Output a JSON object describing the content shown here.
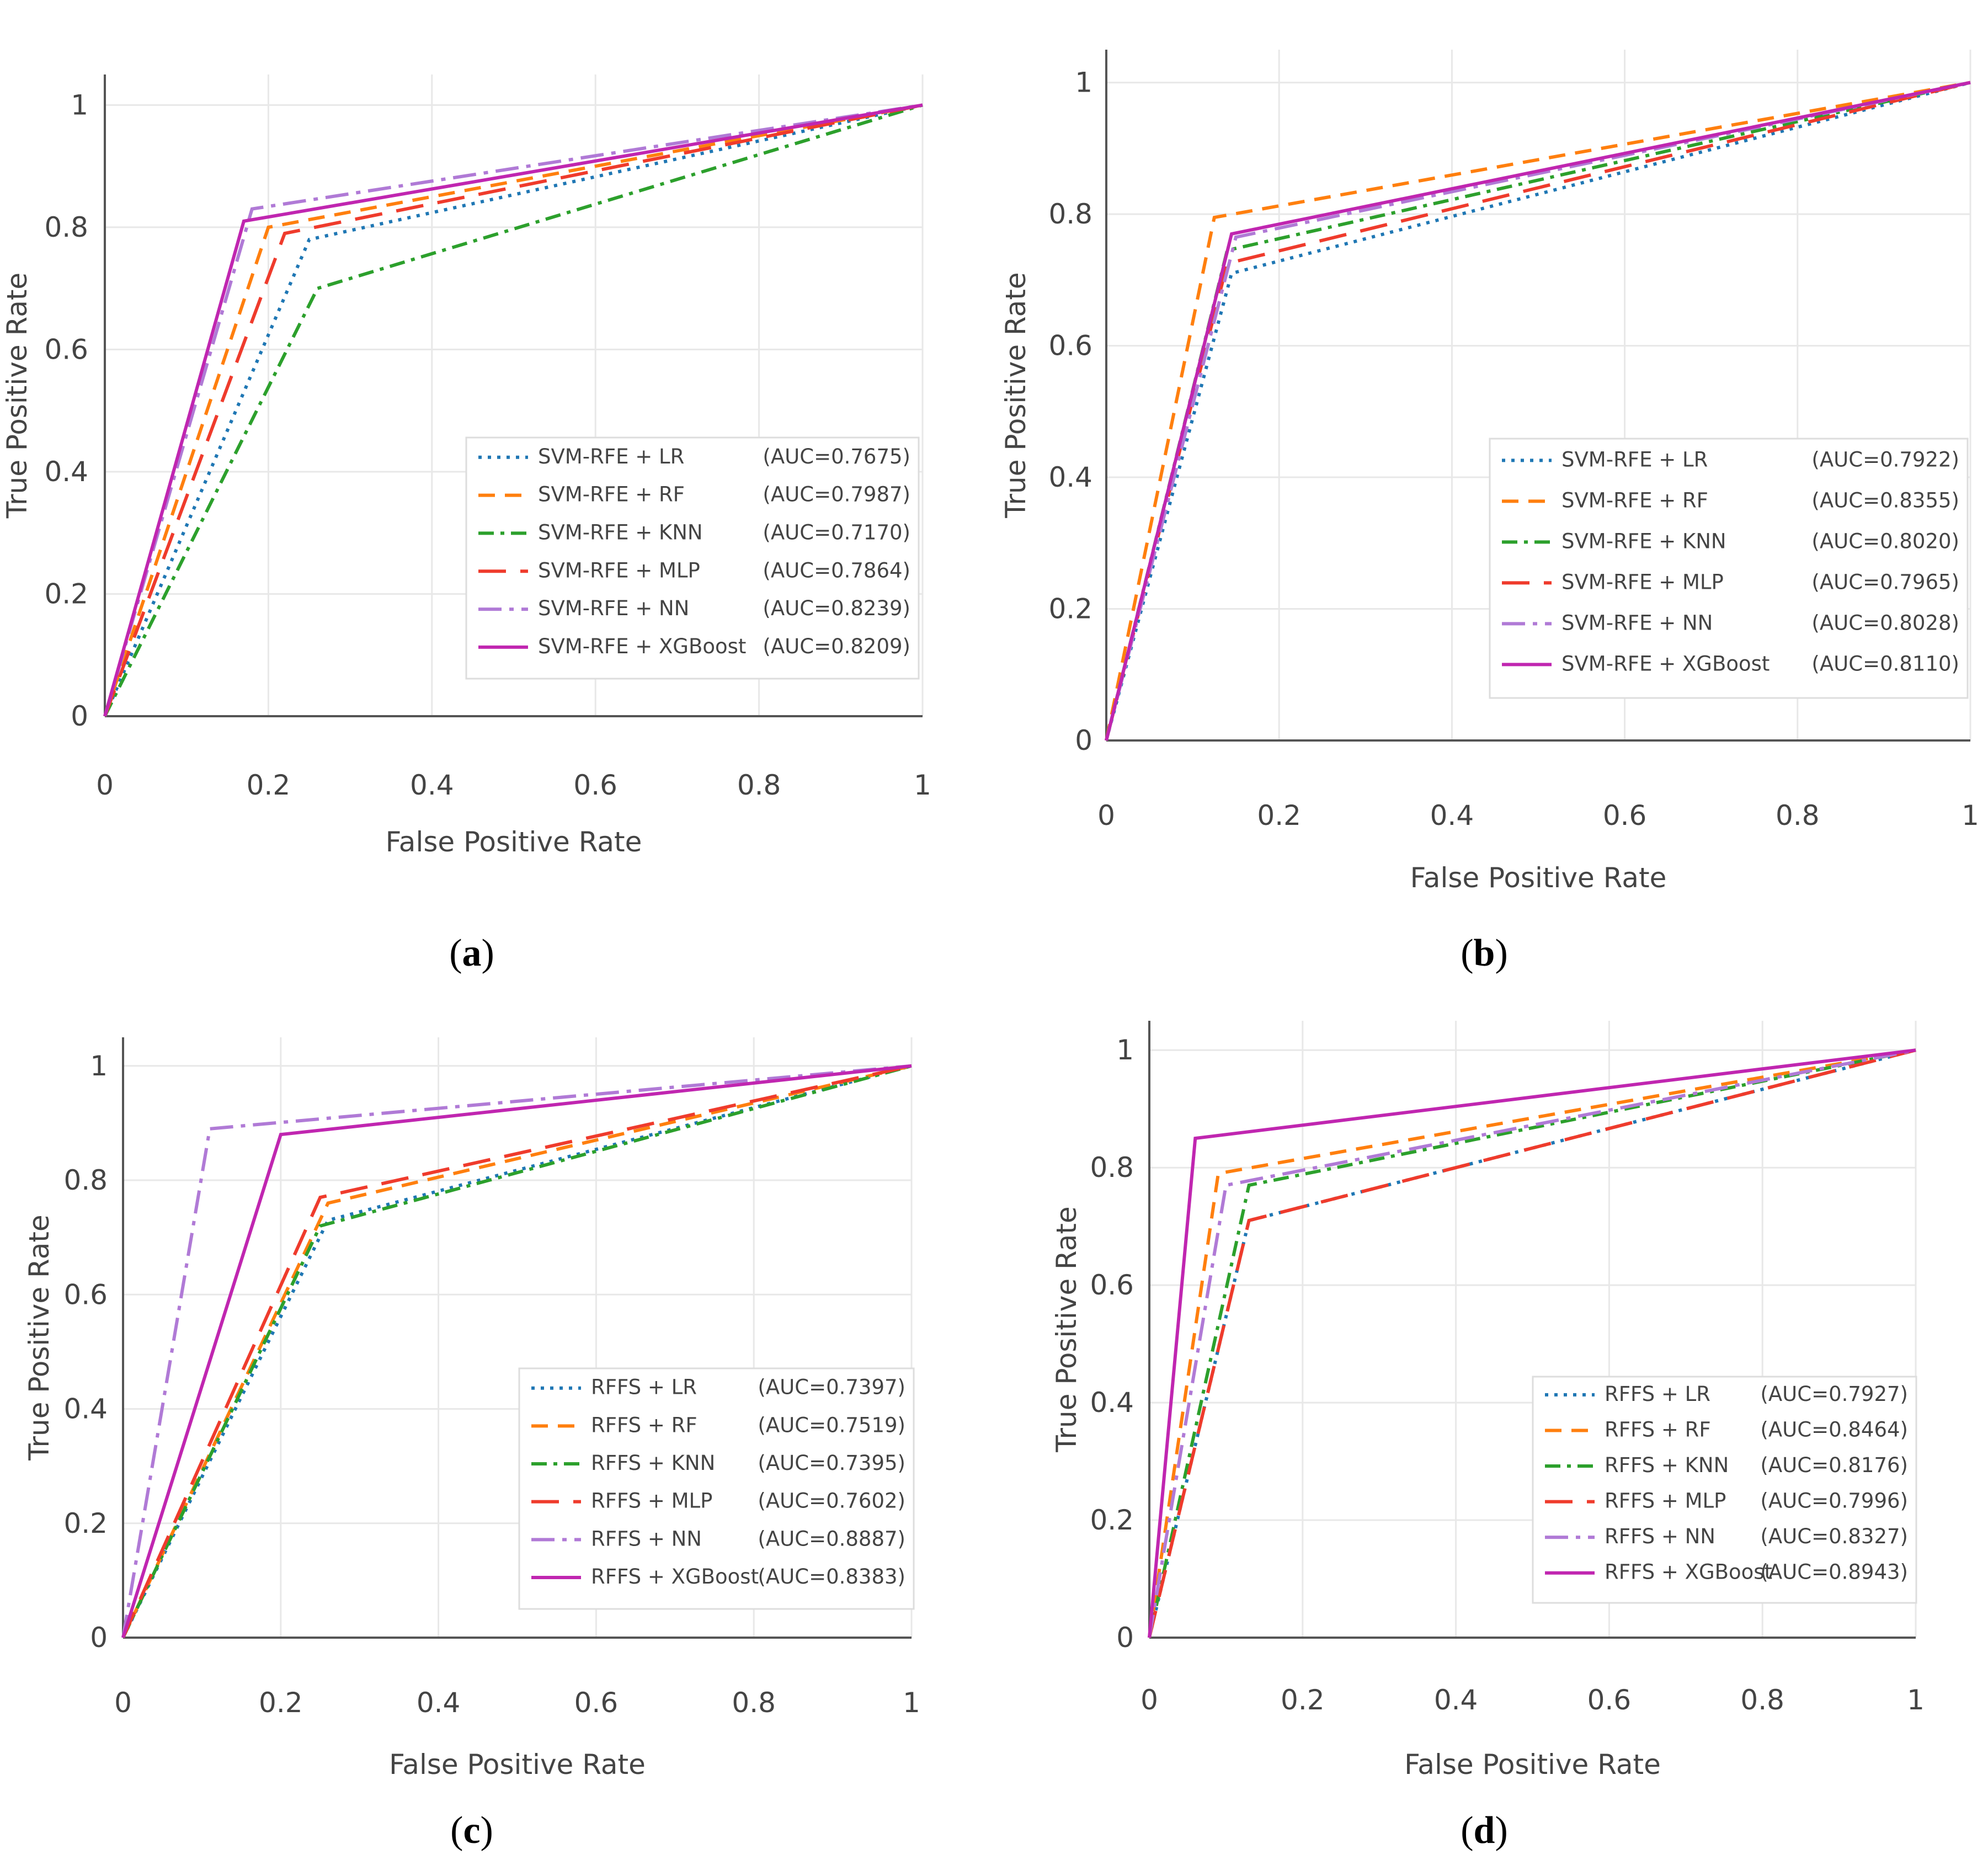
{
  "colors": {
    "LR": "#1f77b4",
    "RF": "#ff7f0e",
    "KNN": "#2ca02c",
    "MLP": "#ef3b2c",
    "NN": "#b07ad6",
    "XGBoost": "#c026b0",
    "grid": "#e8e8e8",
    "zero_axis": "#555555"
  },
  "chart_data": [
    {
      "type": "line",
      "caption_letter": "a",
      "xlabel": "False Positive Rate",
      "ylabel": "True Positive Rate",
      "xlim": [
        0,
        1
      ],
      "ylim": [
        0,
        1.05
      ],
      "x_ticks": [
        0,
        0.2,
        0.4,
        0.6,
        0.8,
        1
      ],
      "y_ticks": [
        0,
        0.2,
        0.4,
        0.6,
        0.8,
        1
      ],
      "x_tick_labels": [
        "0",
        "0.2",
        "0.4",
        "0.6",
        "0.8",
        "1"
      ],
      "y_tick_labels": [
        "0",
        "0.2",
        "0.4",
        "0.6",
        "0.8",
        "1"
      ],
      "grid": true,
      "legend_position": "bottom-right",
      "series": [
        {
          "name": "SVM-RFE + LR",
          "auc": "(AUC=0.7675)",
          "key": "LR",
          "dash": "dot",
          "points": [
            [
              0,
              0
            ],
            [
              0.25,
              0.78
            ],
            [
              1,
              1
            ]
          ]
        },
        {
          "name": "SVM-RFE + RF",
          "auc": "(AUC=0.7987)",
          "key": "RF",
          "dash": "dash",
          "points": [
            [
              0,
              0
            ],
            [
              0.2,
              0.8
            ],
            [
              1,
              1
            ]
          ]
        },
        {
          "name": "SVM-RFE + KNN",
          "auc": "(AUC=0.7170)",
          "key": "KNN",
          "dash": "dashdot",
          "points": [
            [
              0,
              0
            ],
            [
              0.26,
              0.7
            ],
            [
              1,
              1
            ]
          ]
        },
        {
          "name": "SVM-RFE + MLP",
          "auc": "(AUC=0.7864)",
          "key": "MLP",
          "dash": "longdash",
          "points": [
            [
              0,
              0
            ],
            [
              0.22,
              0.79
            ],
            [
              1,
              1
            ]
          ]
        },
        {
          "name": "SVM-RFE + NN",
          "auc": "(AUC=0.8239)",
          "key": "NN",
          "dash": "longdashdot",
          "points": [
            [
              0,
              0
            ],
            [
              0.18,
              0.83
            ],
            [
              1,
              1
            ]
          ]
        },
        {
          "name": "SVM-RFE + XGBoost",
          "auc": "(AUC=0.8209)",
          "key": "XGBoost",
          "dash": "solid",
          "points": [
            [
              0,
              0
            ],
            [
              0.17,
              0.81
            ],
            [
              1,
              1
            ]
          ]
        }
      ]
    },
    {
      "type": "line",
      "caption_letter": "b",
      "xlabel": "False Positive Rate",
      "ylabel": "True Positive Rate",
      "xlim": [
        0,
        1
      ],
      "ylim": [
        0,
        1.05
      ],
      "x_ticks": [
        0,
        0.2,
        0.4,
        0.6,
        0.8,
        1
      ],
      "y_ticks": [
        0,
        0.2,
        0.4,
        0.6,
        0.8,
        1
      ],
      "x_tick_labels": [
        "0",
        "0.2",
        "0.4",
        "0.6",
        "0.8",
        "1"
      ],
      "y_tick_labels": [
        "0",
        "0.2",
        "0.4",
        "0.6",
        "0.8",
        "1"
      ],
      "grid": true,
      "legend_position": "bottom-right",
      "series": [
        {
          "name": "SVM-RFE + LR",
          "auc": "(AUC=0.7922)",
          "key": "LR",
          "dash": "dot",
          "points": [
            [
              0,
              0
            ],
            [
              0.145,
              0.71
            ],
            [
              1,
              1
            ]
          ]
        },
        {
          "name": "SVM-RFE + RF",
          "auc": "(AUC=0.8355)",
          "key": "RF",
          "dash": "dash",
          "points": [
            [
              0,
              0
            ],
            [
              0.125,
              0.795
            ],
            [
              1,
              1
            ]
          ]
        },
        {
          "name": "SVM-RFE + KNN",
          "auc": "(AUC=0.8020)",
          "key": "KNN",
          "dash": "dashdot",
          "points": [
            [
              0,
              0
            ],
            [
              0.14,
              0.745
            ],
            [
              1,
              1
            ]
          ]
        },
        {
          "name": "SVM-RFE + MLP",
          "auc": "(AUC=0.7965)",
          "key": "MLP",
          "dash": "longdash",
          "points": [
            [
              0,
              0
            ],
            [
              0.14,
              0.725
            ],
            [
              1,
              1
            ]
          ]
        },
        {
          "name": "SVM-RFE + NN",
          "auc": "(AUC=0.8028)",
          "key": "NN",
          "dash": "longdashdot",
          "points": [
            [
              0,
              0
            ],
            [
              0.15,
              0.765
            ],
            [
              1,
              1
            ]
          ]
        },
        {
          "name": "SVM-RFE + XGBoost",
          "auc": "(AUC=0.8110)",
          "key": "XGBoost",
          "dash": "solid",
          "points": [
            [
              0,
              0
            ],
            [
              0.145,
              0.77
            ],
            [
              1,
              1
            ]
          ]
        }
      ]
    },
    {
      "type": "line",
      "caption_letter": "c",
      "xlabel": "False Positive Rate",
      "ylabel": "True Positive Rate",
      "xlim": [
        0,
        1
      ],
      "ylim": [
        0,
        1.05
      ],
      "x_ticks": [
        0,
        0.2,
        0.4,
        0.6,
        0.8,
        1
      ],
      "y_ticks": [
        0,
        0.2,
        0.4,
        0.6,
        0.8,
        1
      ],
      "x_tick_labels": [
        "0",
        "0.2",
        "0.4",
        "0.6",
        "0.8",
        "1"
      ],
      "y_tick_labels": [
        "0",
        "0.2",
        "0.4",
        "0.6",
        "0.8",
        "1"
      ],
      "grid": true,
      "legend_position": "bottom-right",
      "series": [
        {
          "name": "RFFS + LR",
          "auc": "(AUC=0.7397)",
          "key": "LR",
          "dash": "dot",
          "points": [
            [
              0,
              0
            ],
            [
              0.26,
              0.73
            ],
            [
              1,
              1
            ]
          ]
        },
        {
          "name": "RFFS + RF",
          "auc": "(AUC=0.7519)",
          "key": "RF",
          "dash": "dash",
          "points": [
            [
              0,
              0
            ],
            [
              0.26,
              0.76
            ],
            [
              1,
              1
            ]
          ]
        },
        {
          "name": "RFFS + KNN",
          "auc": "(AUC=0.7395)",
          "key": "KNN",
          "dash": "dashdot",
          "points": [
            [
              0,
              0
            ],
            [
              0.25,
              0.72
            ],
            [
              1,
              1
            ]
          ]
        },
        {
          "name": "RFFS + MLP",
          "auc": "(AUC=0.7602)",
          "key": "MLP",
          "dash": "longdash",
          "points": [
            [
              0,
              0
            ],
            [
              0.25,
              0.77
            ],
            [
              1,
              1
            ]
          ]
        },
        {
          "name": "RFFS + NN",
          "auc": "(AUC=0.8887)",
          "key": "NN",
          "dash": "longdashdot",
          "points": [
            [
              0,
              0
            ],
            [
              0.11,
              0.89
            ],
            [
              1,
              1
            ]
          ]
        },
        {
          "name": "RFFS + XGBoost",
          "auc": "(AUC=0.8383)",
          "key": "XGBoost",
          "dash": "solid",
          "points": [
            [
              0,
              0
            ],
            [
              0.2,
              0.88
            ],
            [
              1,
              1
            ]
          ]
        }
      ]
    },
    {
      "type": "line",
      "caption_letter": "d",
      "xlabel": "False Positive Rate",
      "ylabel": "True Positive Rate",
      "xlim": [
        0,
        1
      ],
      "ylim": [
        0,
        1.05
      ],
      "x_ticks": [
        0,
        0.2,
        0.4,
        0.6,
        0.8,
        1
      ],
      "y_ticks": [
        0,
        0.2,
        0.4,
        0.6,
        0.8,
        1
      ],
      "x_tick_labels": [
        "0",
        "0.2",
        "0.4",
        "0.6",
        "0.8",
        "1"
      ],
      "y_tick_labels": [
        "0",
        "0.2",
        "0.4",
        "0.6",
        "0.8",
        "1"
      ],
      "grid": true,
      "legend_position": "bottom-right",
      "series": [
        {
          "name": "RFFS + LR",
          "auc": "(AUC=0.7927)",
          "key": "LR",
          "dash": "dot",
          "points": [
            [
              0,
              0
            ],
            [
              0.13,
              0.71
            ],
            [
              1,
              1
            ]
          ]
        },
        {
          "name": "RFFS + RF",
          "auc": "(AUC=0.8464)",
          "key": "RF",
          "dash": "dash",
          "points": [
            [
              0,
              0
            ],
            [
              0.09,
              0.79
            ],
            [
              1,
              1
            ]
          ]
        },
        {
          "name": "RFFS + KNN",
          "auc": "(AUC=0.8176)",
          "key": "KNN",
          "dash": "dashdot",
          "points": [
            [
              0,
              0
            ],
            [
              0.13,
              0.77
            ],
            [
              1,
              1
            ]
          ]
        },
        {
          "name": "RFFS + MLP",
          "auc": "(AUC=0.7996)",
          "key": "MLP",
          "dash": "longdash",
          "points": [
            [
              0,
              0
            ],
            [
              0.13,
              0.71
            ],
            [
              1,
              1
            ]
          ]
        },
        {
          "name": "RFFS + NN",
          "auc": "(AUC=0.8327)",
          "key": "NN",
          "dash": "longdashdot",
          "points": [
            [
              0,
              0
            ],
            [
              0.1,
              0.77
            ],
            [
              1,
              1
            ]
          ]
        },
        {
          "name": "RFFS + XGBoost",
          "auc": "(AUC=0.8943)",
          "key": "XGBoost",
          "dash": "solid",
          "points": [
            [
              0,
              0
            ],
            [
              0.06,
              0.85
            ],
            [
              1,
              1
            ]
          ]
        }
      ]
    }
  ]
}
